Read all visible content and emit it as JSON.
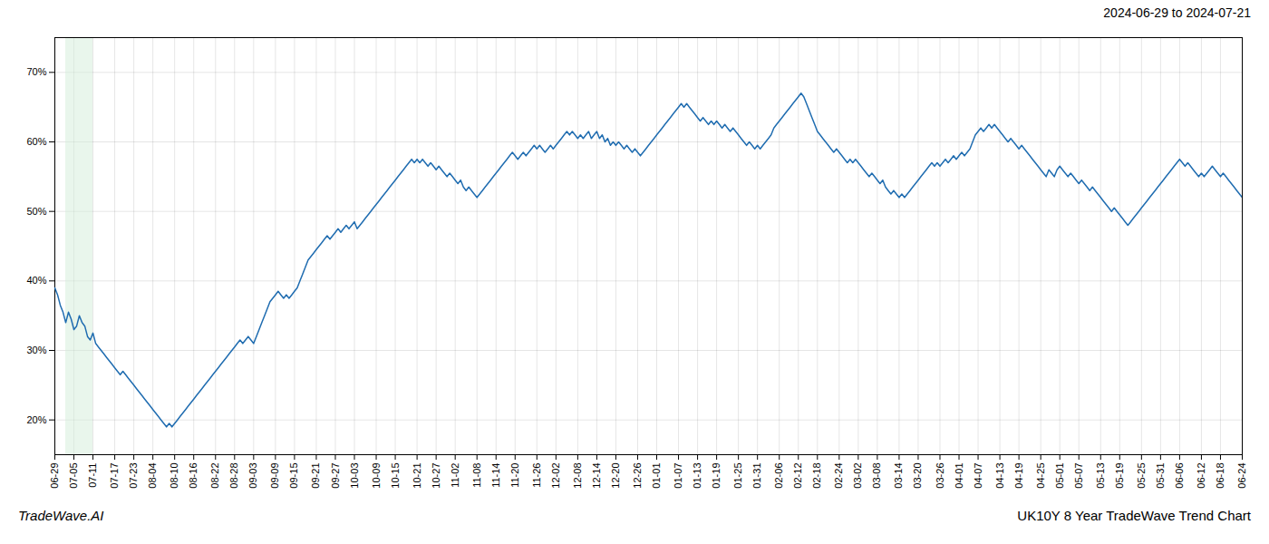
{
  "chart_data": {
    "type": "line",
    "title": "2024-06-29 to 2024-07-21",
    "annotations": [
      "TradeWave.AI",
      "UK10Y 8 Year TradeWave Trend Chart"
    ],
    "color": "#1f6cb0",
    "grid": true,
    "xlim": [
      0,
      436
    ],
    "xticks": [
      {
        "value": 0,
        "label": "06-29"
      },
      {
        "value": 7,
        "label": "07-05"
      },
      {
        "value": 14,
        "label": "07-11"
      },
      {
        "value": 22,
        "label": "07-17"
      },
      {
        "value": 29,
        "label": "07-23"
      },
      {
        "value": 36,
        "label": "08-04"
      },
      {
        "value": 44,
        "label": "08-10"
      },
      {
        "value": 51,
        "label": "08-16"
      },
      {
        "value": 59,
        "label": "08-22"
      },
      {
        "value": 66,
        "label": "08-28"
      },
      {
        "value": 73,
        "label": "09-03"
      },
      {
        "value": 81,
        "label": "09-09"
      },
      {
        "value": 88,
        "label": "09-15"
      },
      {
        "value": 96,
        "label": "09-21"
      },
      {
        "value": 103,
        "label": "09-27"
      },
      {
        "value": 110,
        "label": "10-03"
      },
      {
        "value": 118,
        "label": "10-09"
      },
      {
        "value": 125,
        "label": "10-15"
      },
      {
        "value": 133,
        "label": "10-21"
      },
      {
        "value": 140,
        "label": "10-27"
      },
      {
        "value": 147,
        "label": "11-02"
      },
      {
        "value": 155,
        "label": "11-08"
      },
      {
        "value": 162,
        "label": "11-14"
      },
      {
        "value": 169,
        "label": "11-20"
      },
      {
        "value": 177,
        "label": "11-26"
      },
      {
        "value": 184,
        "label": "12-02"
      },
      {
        "value": 192,
        "label": "12-08"
      },
      {
        "value": 199,
        "label": "12-14"
      },
      {
        "value": 206,
        "label": "12-20"
      },
      {
        "value": 214,
        "label": "12-26"
      },
      {
        "value": 221,
        "label": "01-01"
      },
      {
        "value": 229,
        "label": "01-07"
      },
      {
        "value": 236,
        "label": "01-13"
      },
      {
        "value": 243,
        "label": "01-19"
      },
      {
        "value": 251,
        "label": "01-25"
      },
      {
        "value": 258,
        "label": "01-31"
      },
      {
        "value": 266,
        "label": "02-06"
      },
      {
        "value": 273,
        "label": "02-12"
      },
      {
        "value": 280,
        "label": "02-18"
      },
      {
        "value": 288,
        "label": "02-24"
      },
      {
        "value": 295,
        "label": "03-02"
      },
      {
        "value": 302,
        "label": "03-08"
      },
      {
        "value": 310,
        "label": "03-14"
      },
      {
        "value": 317,
        "label": "03-20"
      },
      {
        "value": 325,
        "label": "03-26"
      },
      {
        "value": 332,
        "label": "04-01"
      },
      {
        "value": 339,
        "label": "04-07"
      },
      {
        "value": 347,
        "label": "04-13"
      },
      {
        "value": 354,
        "label": "04-19"
      },
      {
        "value": 362,
        "label": "04-25"
      },
      {
        "value": 369,
        "label": "05-01"
      },
      {
        "value": 376,
        "label": "05-07"
      },
      {
        "value": 384,
        "label": "05-13"
      },
      {
        "value": 391,
        "label": "05-19"
      },
      {
        "value": 399,
        "label": "05-25"
      },
      {
        "value": 406,
        "label": "05-31"
      },
      {
        "value": 413,
        "label": "06-06"
      },
      {
        "value": 421,
        "label": "06-12"
      },
      {
        "value": 428,
        "label": "06-18"
      },
      {
        "value": 436,
        "label": "06-24"
      }
    ],
    "ylim": [
      15,
      75
    ],
    "yticks": [
      {
        "value": 20,
        "label": "20%"
      },
      {
        "value": 30,
        "label": "30%"
      },
      {
        "value": 40,
        "label": "40%"
      },
      {
        "value": 50,
        "label": "50%"
      },
      {
        "value": 60,
        "label": "60%"
      },
      {
        "value": 70,
        "label": "70%"
      }
    ],
    "shaded_region": {
      "x": [
        4,
        14
      ],
      "color": "#d4edda"
    },
    "values": [
      39.0,
      38.0,
      36.5,
      35.5,
      34.0,
      35.5,
      34.5,
      33.0,
      33.5,
      35.0,
      34.0,
      33.5,
      32.0,
      31.5,
      32.5,
      31.0,
      30.5,
      30.0,
      29.5,
      29.0,
      28.5,
      28.0,
      27.5,
      27.0,
      26.5,
      27.0,
      26.5,
      26.0,
      25.5,
      25.0,
      24.5,
      24.0,
      23.5,
      23.0,
      22.5,
      22.0,
      21.5,
      21.0,
      20.5,
      20.0,
      19.5,
      19.0,
      19.5,
      19.0,
      19.5,
      20.0,
      20.5,
      21.0,
      21.5,
      22.0,
      22.5,
      23.0,
      23.5,
      24.0,
      24.5,
      25.0,
      25.5,
      26.0,
      26.5,
      27.0,
      27.5,
      28.0,
      28.5,
      29.0,
      29.5,
      30.0,
      30.5,
      31.0,
      31.5,
      31.0,
      31.5,
      32.0,
      31.5,
      31.0,
      32.0,
      33.0,
      34.0,
      35.0,
      36.0,
      37.0,
      37.5,
      38.0,
      38.5,
      38.0,
      37.5,
      38.0,
      37.5,
      38.0,
      38.5,
      39.0,
      40.0,
      41.0,
      42.0,
      43.0,
      43.5,
      44.0,
      44.5,
      45.0,
      45.5,
      46.0,
      46.5,
      46.0,
      46.5,
      47.0,
      47.5,
      47.0,
      47.5,
      48.0,
      47.5,
      48.0,
      48.5,
      47.5,
      48.0,
      48.5,
      49.0,
      49.5,
      50.0,
      50.5,
      51.0,
      51.5,
      52.0,
      52.5,
      53.0,
      53.5,
      54.0,
      54.5,
      55.0,
      55.5,
      56.0,
      56.5,
      57.0,
      57.5,
      57.0,
      57.5,
      57.0,
      57.5,
      57.0,
      56.5,
      57.0,
      56.5,
      56.0,
      56.5,
      56.0,
      55.5,
      55.0,
      55.5,
      55.0,
      54.5,
      54.0,
      54.5,
      53.5,
      53.0,
      53.5,
      53.0,
      52.5,
      52.0,
      52.5,
      53.0,
      53.5,
      54.0,
      54.5,
      55.0,
      55.5,
      56.0,
      56.5,
      57.0,
      57.5,
      58.0,
      58.5,
      58.0,
      57.5,
      58.0,
      58.5,
      58.0,
      58.5,
      59.0,
      59.5,
      59.0,
      59.5,
      59.0,
      58.5,
      59.0,
      59.5,
      59.0,
      59.5,
      60.0,
      60.5,
      61.0,
      61.5,
      61.0,
      61.5,
      61.0,
      60.5,
      61.0,
      60.5,
      61.0,
      61.5,
      60.5,
      61.0,
      61.5,
      60.5,
      61.0,
      60.0,
      60.5,
      59.5,
      60.0,
      59.5,
      60.0,
      59.5,
      59.0,
      59.5,
      59.0,
      58.5,
      59.0,
      58.5,
      58.0,
      58.5,
      59.0,
      59.5,
      60.0,
      60.5,
      61.0,
      61.5,
      62.0,
      62.5,
      63.0,
      63.5,
      64.0,
      64.5,
      65.0,
      65.5,
      65.0,
      65.5,
      65.0,
      64.5,
      64.0,
      63.5,
      63.0,
      63.5,
      63.0,
      62.5,
      63.0,
      62.5,
      63.0,
      62.5,
      62.0,
      62.5,
      62.0,
      61.5,
      62.0,
      61.5,
      61.0,
      60.5,
      60.0,
      59.5,
      60.0,
      59.5,
      59.0,
      59.5,
      59.0,
      59.5,
      60.0,
      60.5,
      61.0,
      62.0,
      62.5,
      63.0,
      63.5,
      64.0,
      64.5,
      65.0,
      65.5,
      66.0,
      66.5,
      67.0,
      66.5,
      65.5,
      64.5,
      63.5,
      62.5,
      61.5,
      61.0,
      60.5,
      60.0,
      59.5,
      59.0,
      58.5,
      59.0,
      58.5,
      58.0,
      57.5,
      57.0,
      57.5,
      57.0,
      57.5,
      57.0,
      56.5,
      56.0,
      55.5,
      55.0,
      55.5,
      55.0,
      54.5,
      54.0,
      54.5,
      53.5,
      53.0,
      52.5,
      53.0,
      52.5,
      52.0,
      52.5,
      52.0,
      52.5,
      53.0,
      53.5,
      54.0,
      54.5,
      55.0,
      55.5,
      56.0,
      56.5,
      57.0,
      56.5,
      57.0,
      56.5,
      57.0,
      57.5,
      57.0,
      57.5,
      58.0,
      57.5,
      58.0,
      58.5,
      58.0,
      58.5,
      59.0,
      60.0,
      61.0,
      61.5,
      62.0,
      61.5,
      62.0,
      62.5,
      62.0,
      62.5,
      62.0,
      61.5,
      61.0,
      60.5,
      60.0,
      60.5,
      60.0,
      59.5,
      59.0,
      59.5,
      59.0,
      58.5,
      58.0,
      57.5,
      57.0,
      56.5,
      56.0,
      55.5,
      55.0,
      56.0,
      55.5,
      55.0,
      56.0,
      56.5,
      56.0,
      55.5,
      55.0,
      55.5,
      55.0,
      54.5,
      54.0,
      54.5,
      54.0,
      53.5,
      53.0,
      53.5,
      53.0,
      52.5,
      52.0,
      51.5,
      51.0,
      50.5,
      50.0,
      50.5,
      50.0,
      49.5,
      49.0,
      48.5,
      48.0,
      48.5,
      49.0,
      49.5,
      50.0,
      50.5,
      51.0,
      51.5,
      52.0,
      52.5,
      53.0,
      53.5,
      54.0,
      54.5,
      55.0,
      55.5,
      56.0,
      56.5,
      57.0,
      57.5,
      57.0,
      56.5,
      57.0,
      56.5,
      56.0,
      55.5,
      55.0,
      55.5,
      55.0,
      55.5,
      56.0,
      56.5,
      56.0,
      55.5,
      55.0,
      55.5,
      55.0,
      54.5,
      54.0,
      53.5,
      53.0,
      52.5,
      52.0
    ]
  }
}
